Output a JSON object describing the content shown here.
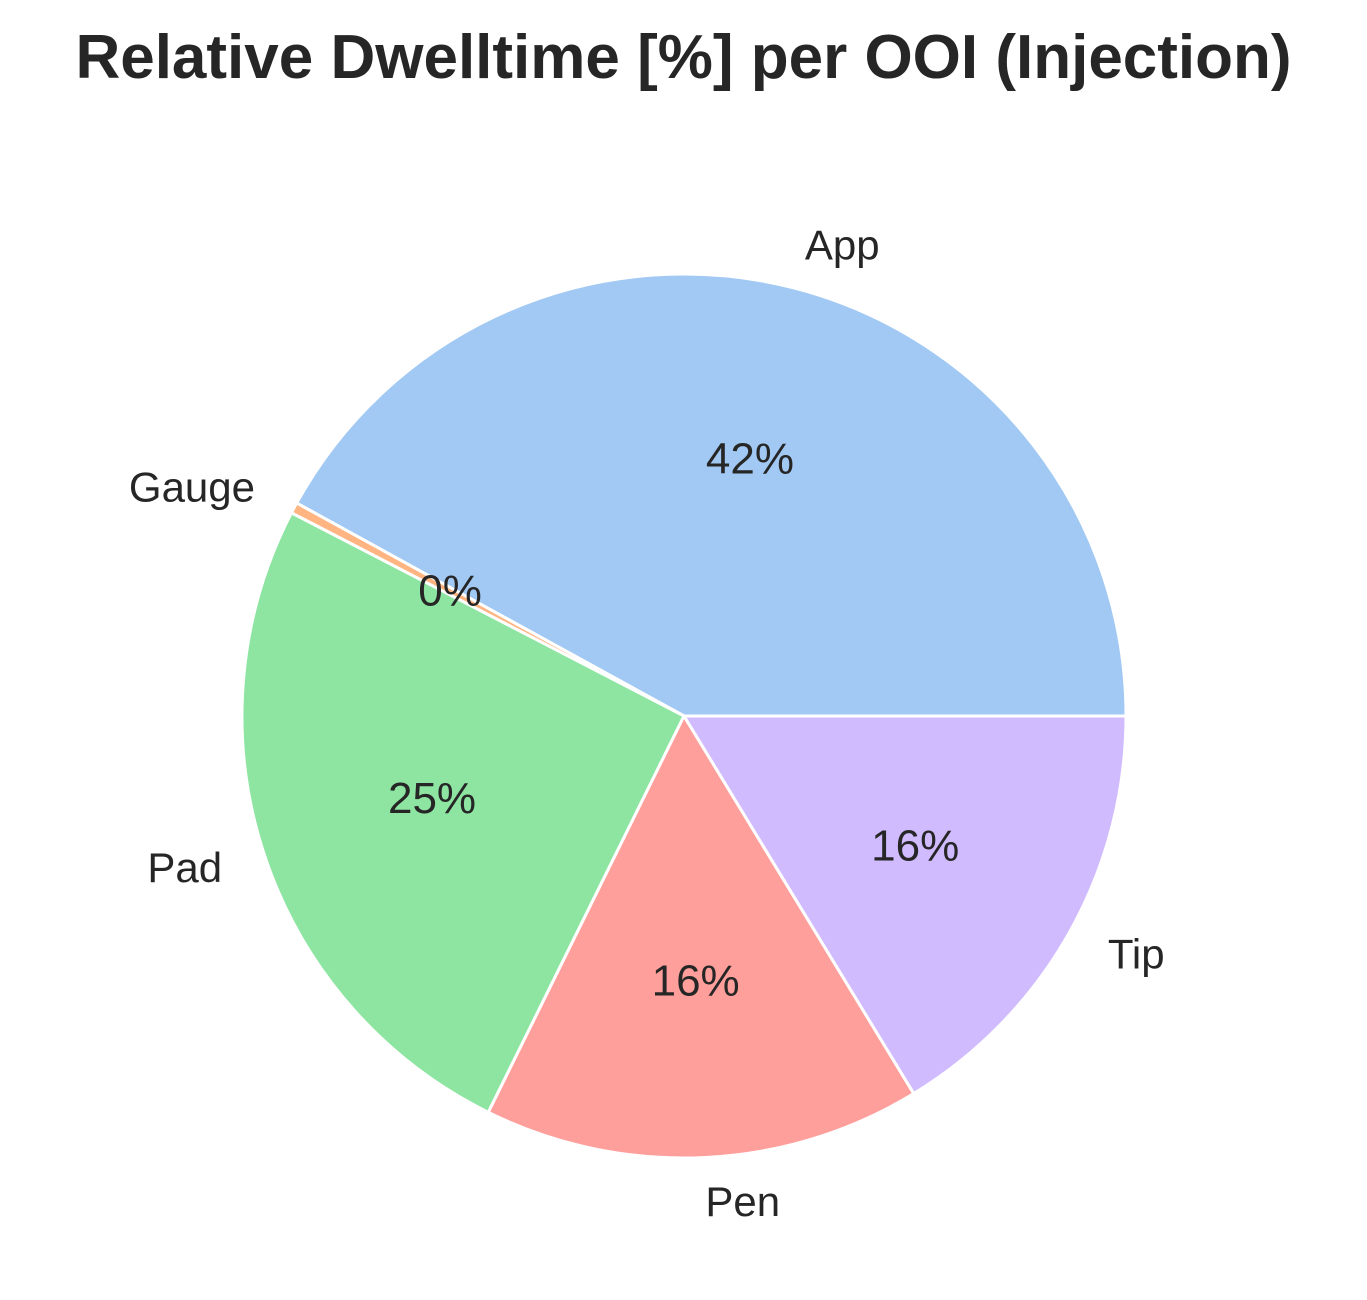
{
  "chart_data": {
    "type": "pie",
    "title": "Relative Dwelltime [%] per OOI (Injection)",
    "start_angle_deg": 0,
    "direction": "counterclockwise",
    "slices": [
      {
        "label": "App",
        "value": 42.0,
        "pct_label": "42%",
        "color": "#a1c9f4"
      },
      {
        "label": "Gauge",
        "value": 0.4,
        "pct_label": "0%",
        "color": "#ffb482"
      },
      {
        "label": "Pad",
        "value": 25.3,
        "pct_label": "25%",
        "color": "#8de5a1"
      },
      {
        "label": "Pen",
        "value": 16.0,
        "pct_label": "16%",
        "color": "#ff9f9b"
      },
      {
        "label": "Tip",
        "value": 16.3,
        "pct_label": "16%",
        "color": "#d0bbff"
      }
    ]
  }
}
